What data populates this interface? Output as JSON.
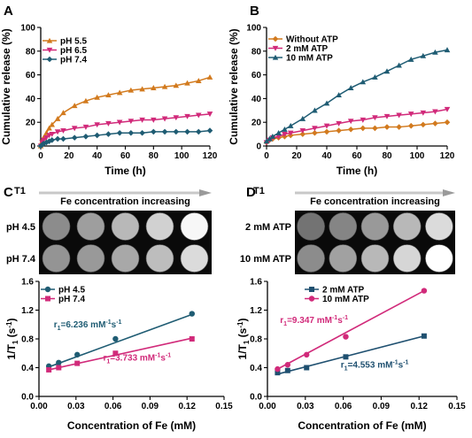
{
  "panels": {
    "A": "A",
    "B": "B",
    "C": "C",
    "D": "D"
  },
  "colors": {
    "orange": "#d27a1e",
    "magenta": "#d12a7a",
    "teal": "#1f5c73",
    "navy": "#1f5070"
  },
  "mri": {
    "C": {
      "t1_label": "T1",
      "header": "Fe concentration increasing",
      "rows": [
        "pH 4.5",
        "pH 7.4"
      ],
      "intensity": [
        [
          0.55,
          0.62,
          0.72,
          0.82,
          0.97
        ],
        [
          0.58,
          0.6,
          0.66,
          0.74,
          0.86
        ]
      ]
    },
    "D": {
      "t1_label": "T1",
      "header": "Fe concentration increasing",
      "rows": [
        "2 mM ATP",
        "10 mM ATP"
      ],
      "intensity": [
        [
          0.45,
          0.52,
          0.6,
          0.72,
          0.86
        ],
        [
          0.55,
          0.63,
          0.72,
          0.84,
          1.0
        ]
      ]
    }
  },
  "chart_data": [
    {
      "id": "A",
      "type": "line",
      "xlabel": "Time (h)",
      "ylabel": "Cumulative release (%)",
      "xlim": [
        0,
        120
      ],
      "ylim": [
        0,
        100
      ],
      "xticks": [
        0,
        20,
        40,
        60,
        80,
        100,
        120
      ],
      "yticks": [
        0,
        20,
        40,
        60,
        80,
        100
      ],
      "legend": "top-left",
      "series": [
        {
          "name": "pH 5.5",
          "color": "#d27a1e",
          "marker": "triangle-up",
          "x": [
            0,
            1,
            2,
            4,
            6,
            8,
            12,
            16,
            24,
            32,
            40,
            48,
            56,
            64,
            72,
            80,
            88,
            96,
            104,
            112,
            120
          ],
          "y": [
            0,
            4,
            7,
            11,
            15,
            18,
            23,
            28,
            34,
            38,
            41,
            43,
            45,
            47,
            48,
            49,
            50,
            51,
            53,
            55,
            58
          ]
        },
        {
          "name": "pH 6.5",
          "color": "#d12a7a",
          "marker": "triangle-down",
          "x": [
            0,
            1,
            2,
            4,
            6,
            8,
            12,
            16,
            24,
            32,
            40,
            48,
            56,
            64,
            72,
            80,
            88,
            96,
            104,
            112,
            120
          ],
          "y": [
            0,
            3,
            5,
            7,
            9,
            10,
            12,
            13,
            15,
            16,
            18,
            19,
            20,
            21,
            22,
            22,
            23,
            24,
            25,
            26,
            27
          ]
        },
        {
          "name": "pH 7.4",
          "color": "#1f5c73",
          "marker": "diamond",
          "x": [
            0,
            1,
            2,
            4,
            6,
            8,
            12,
            16,
            24,
            32,
            40,
            48,
            56,
            64,
            72,
            80,
            88,
            96,
            104,
            112,
            120
          ],
          "y": [
            0,
            1,
            2,
            3,
            4,
            5,
            6,
            6,
            7,
            8,
            9,
            10,
            11,
            11,
            11,
            12,
            12,
            12,
            12,
            12,
            13
          ]
        }
      ]
    },
    {
      "id": "B",
      "type": "line",
      "xlabel": "Time (h)",
      "ylabel": "Cumulative release (%)",
      "xlim": [
        0,
        120
      ],
      "ylim": [
        0,
        100
      ],
      "xticks": [
        0,
        20,
        40,
        60,
        80,
        100,
        120
      ],
      "yticks": [
        0,
        20,
        40,
        60,
        80,
        100
      ],
      "legend": "top-left",
      "series": [
        {
          "name": "Without ATP",
          "color": "#d27a1e",
          "marker": "diamond",
          "x": [
            0,
            2,
            4,
            8,
            12,
            16,
            24,
            32,
            40,
            48,
            56,
            64,
            72,
            80,
            88,
            96,
            104,
            112,
            120
          ],
          "y": [
            3,
            5,
            6,
            7,
            8,
            9,
            10,
            11,
            12,
            13,
            14,
            15,
            15,
            16,
            16,
            17,
            18,
            19,
            20
          ]
        },
        {
          "name": "2 mM ATP",
          "color": "#d12a7a",
          "marker": "triangle-down",
          "x": [
            0,
            2,
            4,
            8,
            12,
            16,
            24,
            32,
            40,
            48,
            56,
            64,
            72,
            80,
            88,
            96,
            104,
            112,
            120
          ],
          "y": [
            3,
            5,
            7,
            8,
            10,
            11,
            13,
            15,
            17,
            19,
            21,
            22,
            24,
            25,
            26,
            27,
            28,
            29,
            31
          ]
        },
        {
          "name": "10 mM ATP",
          "color": "#1f5c73",
          "marker": "triangle-up",
          "x": [
            0,
            2,
            4,
            8,
            12,
            16,
            24,
            32,
            40,
            48,
            56,
            64,
            72,
            80,
            88,
            96,
            104,
            112,
            120
          ],
          "y": [
            4,
            6,
            8,
            11,
            14,
            17,
            23,
            30,
            36,
            43,
            49,
            54,
            58,
            63,
            68,
            73,
            76,
            79,
            81
          ]
        }
      ]
    },
    {
      "id": "C",
      "type": "scatter",
      "xlabel": "Concentration of Fe (mM)",
      "ylabel": "1/T1 (s-1)",
      "xlim": [
        0,
        0.15
      ],
      "ylim": [
        0,
        1.6
      ],
      "xticks": [
        0.0,
        0.03,
        0.06,
        0.09,
        0.12,
        0.15
      ],
      "yticks": [
        0.0,
        0.4,
        0.8,
        1.2,
        1.6
      ],
      "legend": "top-left",
      "series": [
        {
          "name": "pH 4.5",
          "color": "#1f5c73",
          "marker": "circle",
          "x": [
            0.008,
            0.016,
            0.031,
            0.062,
            0.124
          ],
          "y": [
            0.42,
            0.47,
            0.58,
            0.8,
            1.15
          ],
          "fit": [
            [
              0.008,
              0.41
            ],
            [
              0.124,
              1.14
            ]
          ]
        },
        {
          "name": "pH 7.4",
          "color": "#d12a7a",
          "marker": "square",
          "x": [
            0.008,
            0.016,
            0.031,
            0.062,
            0.124
          ],
          "y": [
            0.37,
            0.4,
            0.46,
            0.6,
            0.8
          ],
          "fit": [
            [
              0.008,
              0.37
            ],
            [
              0.124,
              0.81
            ]
          ]
        }
      ],
      "annotations": [
        {
          "prefix": "r",
          "sub": "1",
          "mid": "=6.236 mM",
          "sup1": "-1",
          "tail": "s",
          "sup2": "-1",
          "color": "#1f5c73",
          "x": 0.012,
          "y": 0.96
        },
        {
          "prefix": "r",
          "sub": "1",
          "mid": "=3.733 mM",
          "sup1": "-1",
          "tail": "s",
          "sup2": "-1",
          "color": "#d12a7a",
          "x": 0.052,
          "y": 0.5
        }
      ]
    },
    {
      "id": "D",
      "type": "scatter",
      "xlabel": "Concentration of Fe (mM)",
      "ylabel": "1/T1 (s-1)",
      "xlim": [
        0,
        0.15
      ],
      "ylim": [
        0,
        1.6
      ],
      "xticks": [
        0.0,
        0.03,
        0.06,
        0.09,
        0.12,
        0.15
      ],
      "yticks": [
        0.0,
        0.4,
        0.8,
        1.2,
        1.6
      ],
      "legend": "top-center",
      "series": [
        {
          "name": "2 mM ATP",
          "color": "#1f5070",
          "marker": "square",
          "x": [
            0.008,
            0.016,
            0.031,
            0.062,
            0.124
          ],
          "y": [
            0.33,
            0.36,
            0.4,
            0.55,
            0.84
          ],
          "fit": [
            [
              0.008,
              0.31
            ],
            [
              0.124,
              0.84
            ]
          ]
        },
        {
          "name": "10 mM ATP",
          "color": "#d12a7a",
          "marker": "circle",
          "x": [
            0.008,
            0.016,
            0.031,
            0.062,
            0.124
          ],
          "y": [
            0.38,
            0.44,
            0.58,
            0.83,
            1.47
          ],
          "fit": [
            [
              0.008,
              0.38
            ],
            [
              0.124,
              1.47
            ]
          ]
        }
      ],
      "annotations": [
        {
          "prefix": "r",
          "sub": "1",
          "mid": "=9.347 mM",
          "sup1": "-1",
          "tail": "s",
          "sup2": "-1",
          "color": "#d12a7a",
          "x": 0.01,
          "y": 1.02
        },
        {
          "prefix": "r",
          "sub": "1",
          "mid": "=4.553 mM",
          "sup1": "-1",
          "tail": "s",
          "sup2": "-1",
          "color": "#1f5070",
          "x": 0.058,
          "y": 0.4
        }
      ]
    }
  ]
}
